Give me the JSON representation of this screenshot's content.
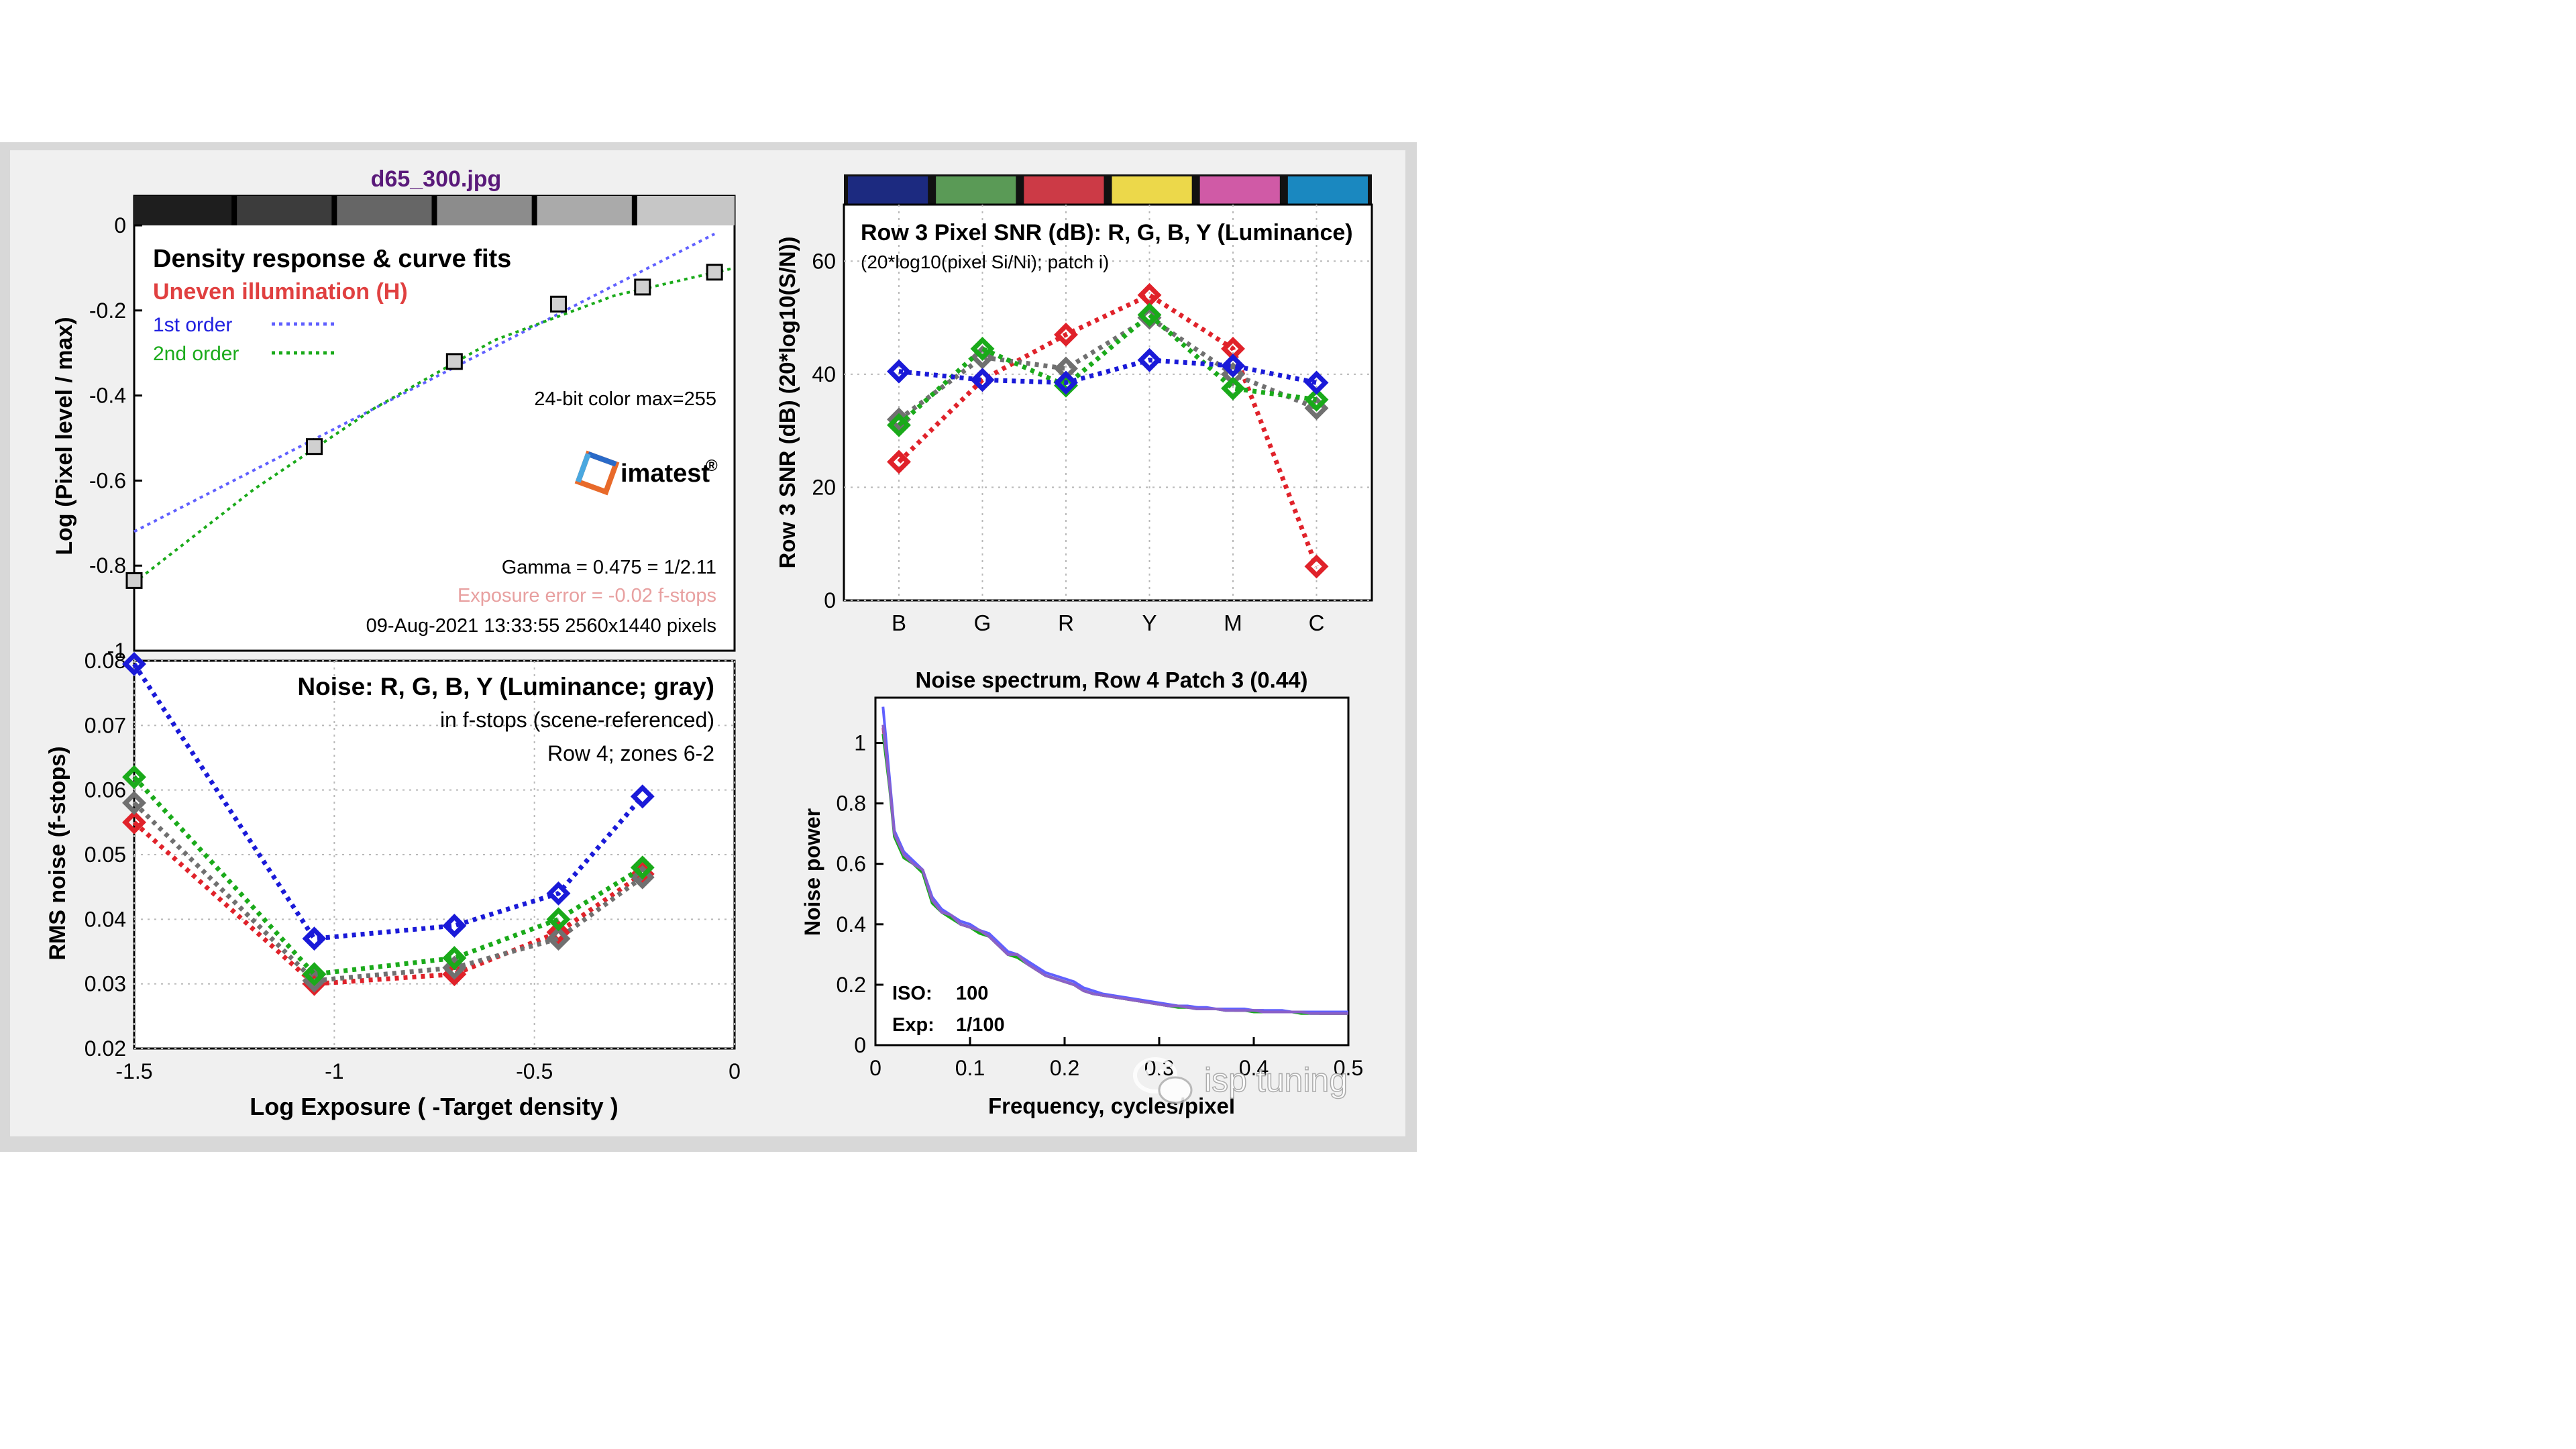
{
  "window": {
    "title": "d65_300.jpg"
  },
  "colors": {
    "frame_outer": "#d8d8d8",
    "frame_inner": "#f0f0f0",
    "title_color": "#5a1a7a",
    "red": "#e0222a",
    "green": "#1aaa1a",
    "blue": "#1a1ad8",
    "gray": "#707070",
    "curve_blue": "#6060ff",
    "uneven_red": "#e04040",
    "exposure_error_pink": "#e8a0a0",
    "spectrum_purple": "#8a60c8"
  },
  "icons": {
    "watermark": "wechat-icon",
    "logo": "imatest-logo-icon"
  },
  "density_panel": {
    "title": "Density response & curve fits",
    "subtitle": "Uneven illumination (H)",
    "legend_1st": "1st order",
    "legend_2nd": "2nd order",
    "color_info": "24-bit color  max=255",
    "logo_text": "imatest",
    "logo_mark": "®",
    "gamma_text": "Gamma = 0.475 = 1/2.11",
    "exposure_error_text": "Exposure error = -0.02 f-stops",
    "datetime_text": "09-Aug-2021 13:33:55   2560x1440 pixels",
    "ylabel": "Log (Pixel level / max)",
    "strip_grays": [
      "#1e1e1e",
      "#3c3c3c",
      "#666666",
      "#8c8c8c",
      "#aaaaaa",
      "#c6c6c6"
    ]
  },
  "noise_panel": {
    "title": "Noise: R, G, B, Y (Luminance; gray)",
    "line2": "in f-stops (scene-referenced)",
    "line3": "Row 4; zones 6-2",
    "ylabel": "RMS noise (f-stops)",
    "xlabel": "Log Exposure ( -Target density )"
  },
  "snr_panel": {
    "title": "Row 3 Pixel SNR (dB): R, G, B, Y (Luminance)",
    "subtitle": "(20*log10(pixel Si/Ni); patch i)",
    "ylabel": "Row 3 SNR (dB) (20*log10(S/N))",
    "strip_colors": [
      "#1c2a80",
      "#5a9a56",
      "#cc3a46",
      "#ecd84a",
      "#d05aa6",
      "#1a88c0"
    ]
  },
  "spectrum_panel": {
    "title": "Noise spectrum, Row 4 Patch 3 (0.44)",
    "ylabel": "Noise power",
    "xlabel": "Frequency, cycles/pixel",
    "iso_label": "ISO:",
    "iso_value": "100",
    "exp_label": "Exp:",
    "exp_value": "1/100"
  },
  "watermark": {
    "text": "isp tuning"
  },
  "chart_data": [
    {
      "type": "scatter",
      "title": "Density response & curve fits",
      "xlabel": "",
      "ylabel": "Log (Pixel level / max)",
      "xlim": [
        -1.5,
        0
      ],
      "ylim": [
        -1,
        0
      ],
      "xticks": [],
      "yticks": [
        0,
        -0.2,
        -0.4,
        -0.6,
        -0.8,
        -1
      ],
      "ytick_labels": [
        "0",
        "-0.2",
        "-0.4",
        "-0.6",
        "-0.8",
        "-1"
      ],
      "grid": false,
      "points": {
        "x": [
          -1.5,
          -1.05,
          -0.7,
          -0.44,
          -0.23,
          -0.05
        ],
        "y": [
          -0.835,
          -0.52,
          -0.32,
          -0.185,
          -0.145,
          -0.11
        ]
      },
      "fits": [
        {
          "name": "1st order",
          "x": [
            -1.5,
            -0.05
          ],
          "y": [
            -0.72,
            -0.02
          ]
        },
        {
          "name": "2nd order",
          "x": [
            -1.5,
            -1.2,
            -0.9,
            -0.6,
            -0.3,
            0
          ],
          "y": [
            -0.84,
            -0.62,
            -0.43,
            -0.27,
            -0.165,
            -0.1
          ]
        }
      ]
    },
    {
      "type": "line",
      "title": "Noise: R, G, B, Y (Luminance; gray)",
      "xlabel": "Log Exposure ( -Target density )",
      "ylabel": "RMS noise (f-stops)",
      "xlim": [
        -1.5,
        0
      ],
      "ylim": [
        0.02,
        0.08
      ],
      "xticks": [
        -1.5,
        -1,
        -0.5,
        0
      ],
      "xtick_labels": [
        "-1.5",
        "-1",
        "-0.5",
        "0"
      ],
      "yticks": [
        0.02,
        0.03,
        0.04,
        0.05,
        0.06,
        0.07,
        0.08
      ],
      "ytick_labels": [
        "0.02",
        "0.03",
        "0.04",
        "0.05",
        "0.06",
        "0.07",
        "0.08"
      ],
      "grid": true,
      "x": [
        -1.5,
        -1.05,
        -0.7,
        -0.44,
        -0.23
      ],
      "series": [
        {
          "name": "R",
          "color": "#e0222a",
          "values": [
            0.055,
            0.03,
            0.0315,
            0.038,
            0.047
          ]
        },
        {
          "name": "Gray",
          "color": "#707070",
          "values": [
            0.058,
            0.0305,
            0.0325,
            0.037,
            0.0465
          ]
        },
        {
          "name": "G",
          "color": "#1aaa1a",
          "values": [
            0.062,
            0.0315,
            0.034,
            0.04,
            0.048
          ]
        },
        {
          "name": "B",
          "color": "#1a1ad8",
          "values": [
            0.0795,
            0.037,
            0.039,
            0.044,
            0.059
          ]
        }
      ]
    },
    {
      "type": "line",
      "title": "Row 3 Pixel SNR (dB): R, G, B, Y (Luminance)",
      "xlabel": "",
      "ylabel": "Row 3 SNR (dB) (20*log10(S/N))",
      "categories": [
        "B",
        "G",
        "R",
        "Y",
        "M",
        "C"
      ],
      "ylim": [
        0,
        70
      ],
      "yticks": [
        0,
        20,
        40,
        60
      ],
      "ytick_labels": [
        "0",
        "20",
        "40",
        "60"
      ],
      "grid": true,
      "series": [
        {
          "name": "R",
          "color": "#e0222a",
          "values": [
            24.5,
            39,
            47,
            54,
            44.5,
            6
          ]
        },
        {
          "name": "Gray",
          "color": "#707070",
          "values": [
            32,
            43,
            41,
            50,
            40,
            34
          ]
        },
        {
          "name": "G",
          "color": "#1aaa1a",
          "values": [
            31,
            44.5,
            38,
            50.5,
            37.5,
            35.5
          ]
        },
        {
          "name": "B",
          "color": "#1a1ad8",
          "values": [
            40.5,
            39,
            38.5,
            42.5,
            41.5,
            38.5
          ]
        }
      ]
    },
    {
      "type": "line",
      "title": "Noise spectrum, Row 4 Patch 3 (0.44)",
      "xlabel": "Frequency, cycles/pixel",
      "ylabel": "Noise power",
      "xlim": [
        0,
        0.5
      ],
      "ylim": [
        0,
        1.15
      ],
      "xticks": [
        0,
        0.1,
        0.2,
        0.3,
        0.4,
        0.5
      ],
      "xtick_labels": [
        "0",
        "0.1",
        "0.2",
        "0.3",
        "0.4",
        "0.5"
      ],
      "yticks": [
        0,
        0.2,
        0.4,
        0.6,
        0.8,
        1
      ],
      "ytick_labels": [
        "0",
        "0.2",
        "0.4",
        "0.6",
        "0.8",
        "1"
      ],
      "grid": false,
      "x": [
        0.008,
        0.015,
        0.02,
        0.03,
        0.04,
        0.05,
        0.06,
        0.07,
        0.08,
        0.09,
        0.1,
        0.11,
        0.12,
        0.13,
        0.14,
        0.15,
        0.16,
        0.17,
        0.18,
        0.19,
        0.2,
        0.21,
        0.22,
        0.23,
        0.24,
        0.25,
        0.26,
        0.27,
        0.28,
        0.29,
        0.3,
        0.31,
        0.32,
        0.33,
        0.34,
        0.35,
        0.36,
        0.37,
        0.38,
        0.39,
        0.4,
        0.41,
        0.42,
        0.43,
        0.44,
        0.45,
        0.46,
        0.47,
        0.48,
        0.49,
        0.5
      ],
      "series": [
        {
          "name": "R",
          "color": "#e0222a",
          "values": [
            1.05,
            0.86,
            0.7,
            0.63,
            0.6,
            0.58,
            0.48,
            0.44,
            0.43,
            0.4,
            0.39,
            0.38,
            0.36,
            0.33,
            0.3,
            0.3,
            0.27,
            0.25,
            0.23,
            0.22,
            0.21,
            0.2,
            0.18,
            0.17,
            0.165,
            0.16,
            0.155,
            0.15,
            0.145,
            0.14,
            0.135,
            0.13,
            0.13,
            0.125,
            0.125,
            0.12,
            0.12,
            0.12,
            0.115,
            0.115,
            0.115,
            0.115,
            0.11,
            0.11,
            0.11,
            0.11,
            0.11,
            0.105,
            0.105,
            0.105,
            0.105
          ]
        },
        {
          "name": "G",
          "color": "#1aaa1a",
          "values": [
            1.03,
            0.85,
            0.69,
            0.62,
            0.6,
            0.57,
            0.47,
            0.44,
            0.42,
            0.4,
            0.39,
            0.37,
            0.36,
            0.33,
            0.3,
            0.29,
            0.27,
            0.25,
            0.23,
            0.22,
            0.21,
            0.2,
            0.18,
            0.17,
            0.165,
            0.16,
            0.155,
            0.15,
            0.145,
            0.14,
            0.135,
            0.13,
            0.125,
            0.125,
            0.12,
            0.12,
            0.12,
            0.115,
            0.115,
            0.115,
            0.11,
            0.11,
            0.11,
            0.11,
            0.11,
            0.105,
            0.105,
            0.105,
            0.105,
            0.105,
            0.105
          ]
        },
        {
          "name": "B",
          "color": "#6060ff",
          "values": [
            1.12,
            0.88,
            0.71,
            0.64,
            0.61,
            0.58,
            0.49,
            0.45,
            0.43,
            0.41,
            0.4,
            0.38,
            0.37,
            0.34,
            0.31,
            0.3,
            0.28,
            0.26,
            0.24,
            0.23,
            0.22,
            0.21,
            0.19,
            0.18,
            0.17,
            0.165,
            0.16,
            0.155,
            0.15,
            0.145,
            0.14,
            0.135,
            0.13,
            0.13,
            0.125,
            0.125,
            0.12,
            0.12,
            0.12,
            0.12,
            0.115,
            0.115,
            0.115,
            0.115,
            0.11,
            0.11,
            0.11,
            0.11,
            0.11,
            0.11,
            0.11
          ]
        },
        {
          "name": "Y",
          "color": "#8a60c8",
          "values": [
            1.06,
            0.86,
            0.7,
            0.63,
            0.6,
            0.58,
            0.48,
            0.44,
            0.43,
            0.4,
            0.39,
            0.38,
            0.36,
            0.33,
            0.3,
            0.3,
            0.27,
            0.25,
            0.23,
            0.22,
            0.21,
            0.2,
            0.18,
            0.17,
            0.165,
            0.16,
            0.155,
            0.15,
            0.145,
            0.14,
            0.135,
            0.13,
            0.13,
            0.125,
            0.12,
            0.12,
            0.12,
            0.115,
            0.115,
            0.115,
            0.115,
            0.11,
            0.11,
            0.11,
            0.11,
            0.11,
            0.105,
            0.105,
            0.105,
            0.105,
            0.105
          ]
        }
      ]
    }
  ]
}
